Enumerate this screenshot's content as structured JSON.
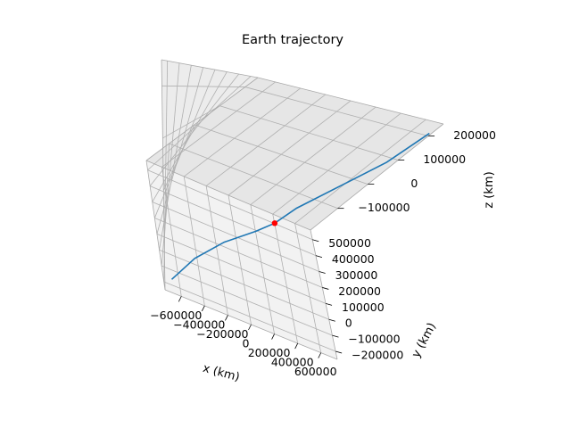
{
  "chart_data": {
    "type": "line",
    "title": "Earth trajectory",
    "xlabel": "x (km)",
    "ylabel": "y (km)",
    "zlabel": "z (km)",
    "xlim": [
      -740000,
      740000
    ],
    "ylim": [
      -250000,
      560000
    ],
    "zlim": [
      -190000,
      250000
    ],
    "xticks": [
      -600000,
      -400000,
      -200000,
      0,
      200000,
      400000,
      600000
    ],
    "xtick_labels": [
      "−600000",
      "−400000",
      "−200000",
      "0",
      "200000",
      "400000",
      "600000"
    ],
    "yticks": [
      -200000,
      -100000,
      0,
      100000,
      200000,
      300000,
      400000,
      500000
    ],
    "ytick_labels": [
      "−200000",
      "−100000",
      "0",
      "100000",
      "200000",
      "300000",
      "400000",
      "500000"
    ],
    "zticks": [
      -100000,
      0,
      100000,
      200000
    ],
    "ztick_labels": [
      "−100000",
      "0",
      "100000",
      "200000"
    ],
    "grid": true,
    "series": [
      {
        "color": "#1f77b4",
        "x": [
          -680000,
          -500000,
          -300000,
          -100000,
          0,
          100000,
          300000,
          500000,
          680000
        ],
        "y": [
          -230000,
          -180000,
          -120000,
          -40000,
          0,
          80000,
          220000,
          370000,
          520000
        ],
        "z": [
          -170000,
          -120000,
          -70000,
          -30000,
          0,
          40000,
          110000,
          170000,
          230000
        ]
      }
    ],
    "points": [
      {
        "color": "#ff0000",
        "x": 0,
        "y": 0,
        "z": 0
      }
    ]
  }
}
